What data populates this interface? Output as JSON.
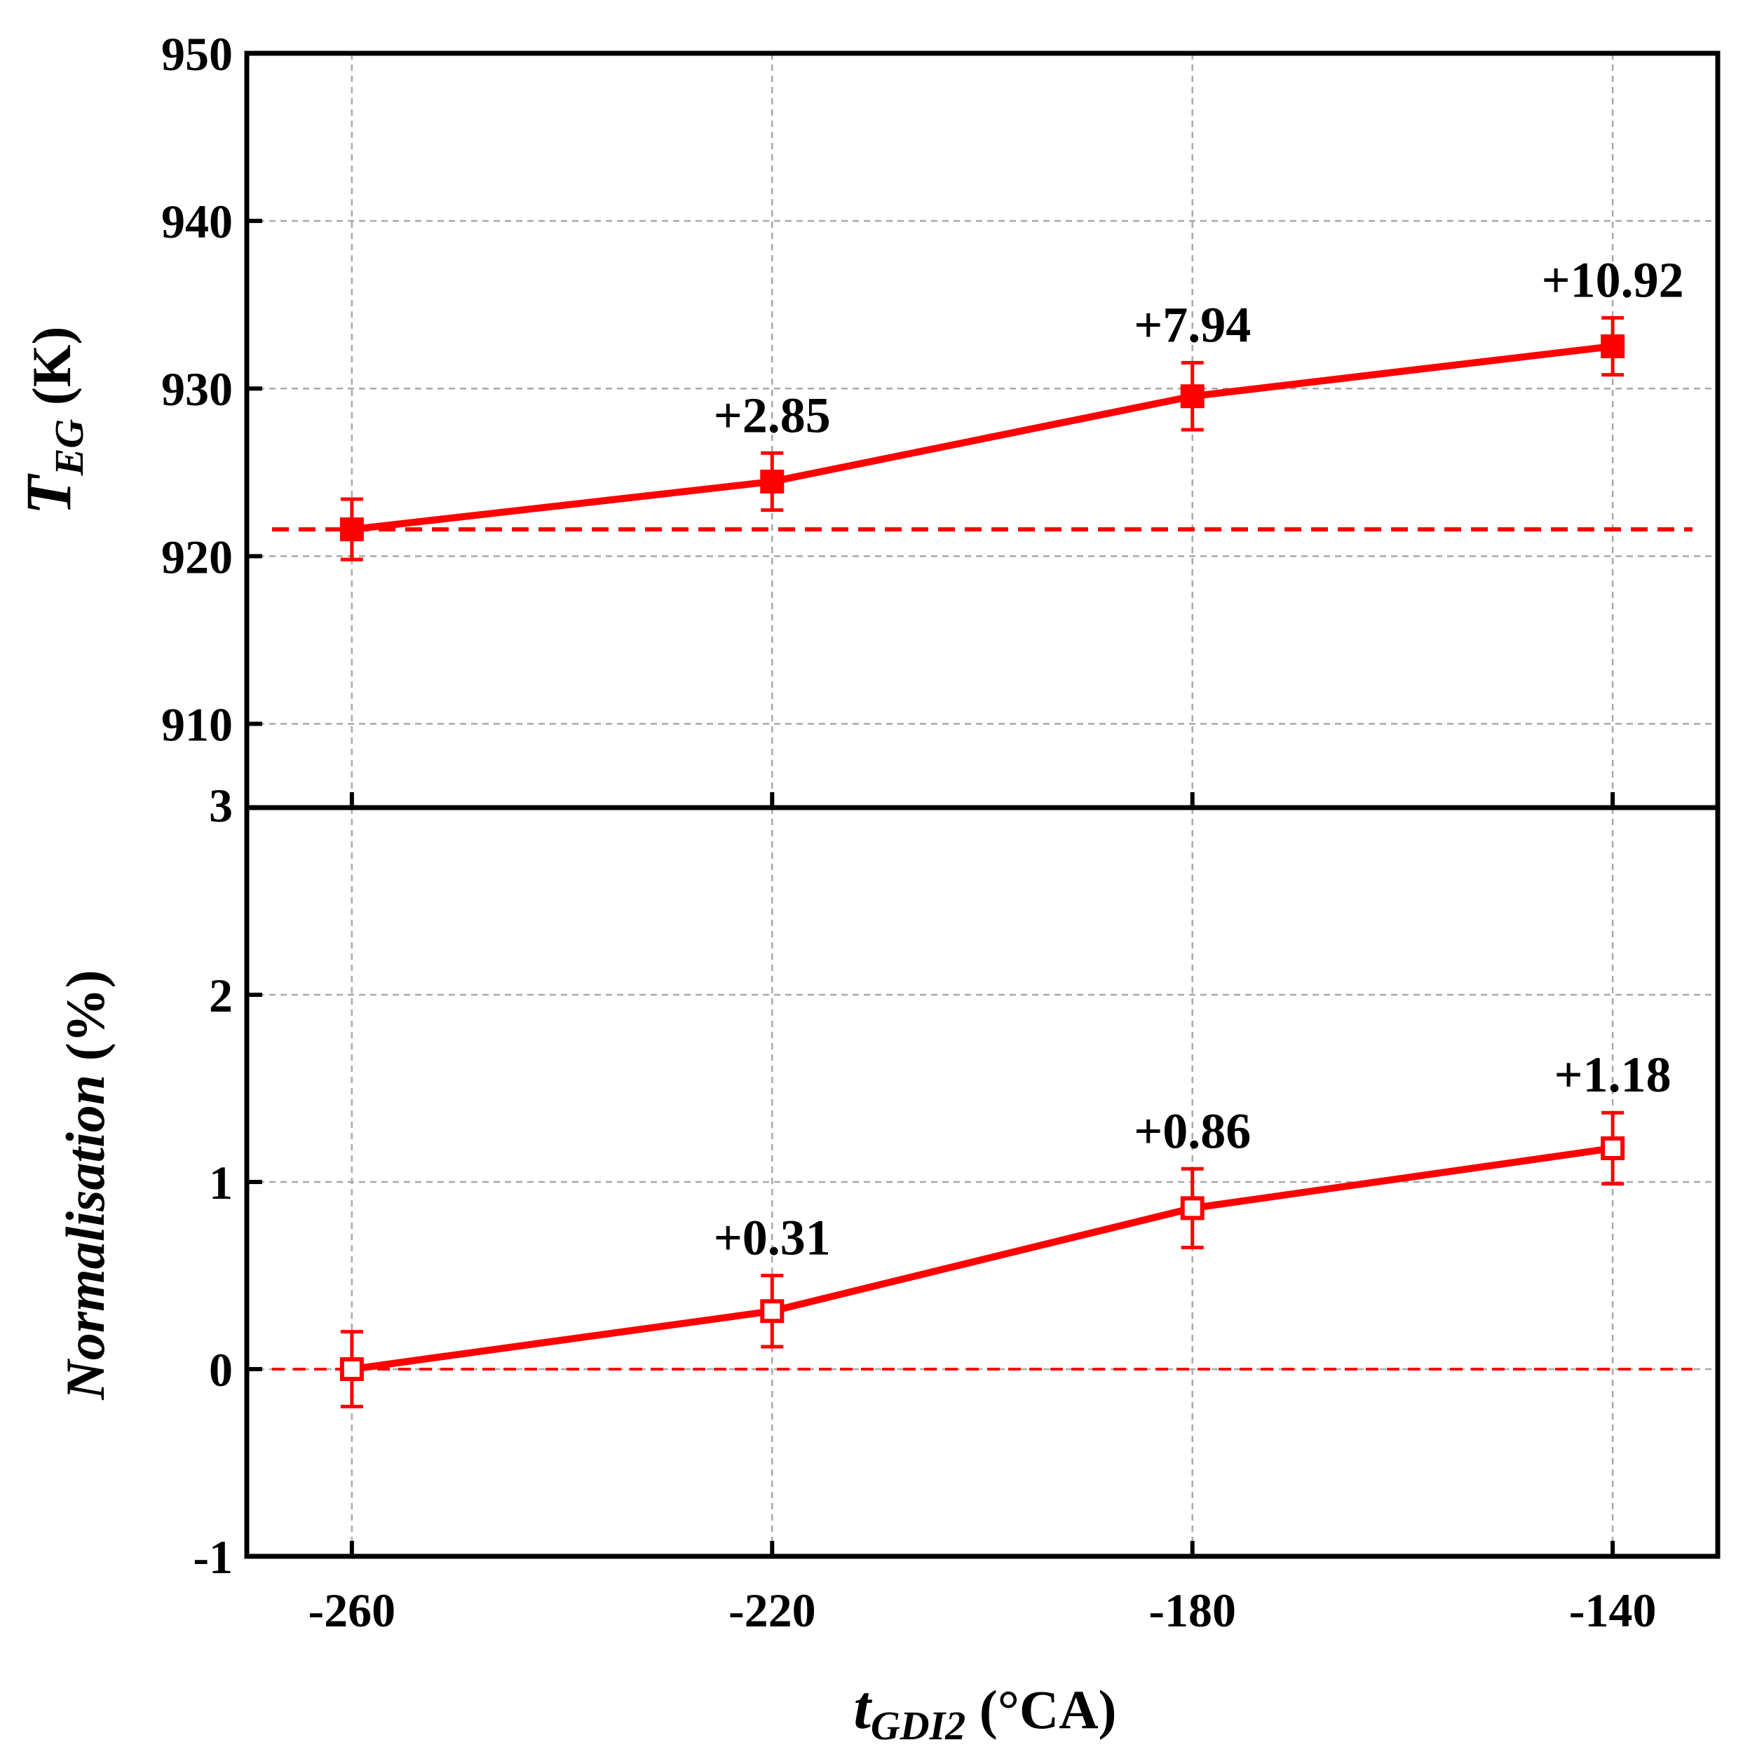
{
  "chart_data": [
    {
      "type": "line",
      "panel": "top",
      "ylabel": "T",
      "ylabel_sub": "EG",
      "ylabel_unit": " (K)",
      "ylim": [
        905,
        950
      ],
      "yticks": [
        910,
        920,
        930,
        940,
        950
      ],
      "xlim": [
        -270,
        -130
      ],
      "x": [
        -260,
        -220,
        -180,
        -140
      ],
      "series": [
        {
          "name": "T_EG",
          "values": [
            921.6,
            924.45,
            929.54,
            932.52
          ],
          "errors": [
            1.8,
            1.7,
            2.0,
            1.7
          ],
          "marker": "filled-square",
          "color": "#ff0000"
        }
      ],
      "baseline": 921.6,
      "annotations": [
        "",
        "+2.85",
        "+7.94",
        "+10.92"
      ]
    },
    {
      "type": "line",
      "panel": "bottom",
      "ylabel": "Normalisation",
      "ylabel_unit": " (%)",
      "ylim": [
        -1,
        3
      ],
      "yticks": [
        -1,
        0,
        1,
        2,
        3
      ],
      "xlim": [
        -270,
        -130
      ],
      "x": [
        -260,
        -220,
        -180,
        -140
      ],
      "xticks": [
        -260,
        -220,
        -180,
        -140
      ],
      "xlabel": "t",
      "xlabel_sub": "GDI2",
      "xlabel_unit": " (°CA)",
      "series": [
        {
          "name": "Normalisation",
          "values": [
            0.0,
            0.31,
            0.86,
            1.18
          ],
          "errors": [
            0.2,
            0.19,
            0.21,
            0.19
          ],
          "marker": "open-square",
          "color": "#ff0000"
        }
      ],
      "baseline": 0,
      "annotations": [
        "",
        "+0.31",
        "+0.86",
        "+1.18"
      ]
    }
  ]
}
